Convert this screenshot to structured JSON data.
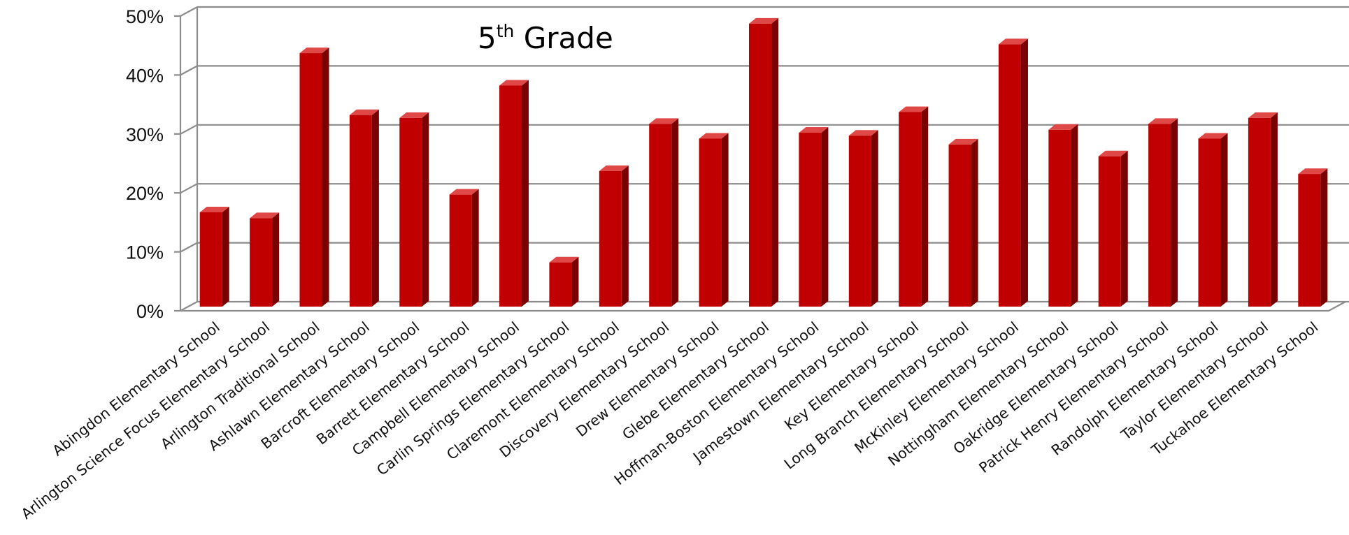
{
  "chart_data": {
    "type": "bar",
    "title_main": "5",
    "title_sup": "th",
    "title_rest": " Grade",
    "ylim": [
      0,
      50
    ],
    "yticks": [
      "0%",
      "10%",
      "20%",
      "30%",
      "40%",
      "50%"
    ],
    "grid": true,
    "bar_color": "#C00000",
    "bar_side_color": "#7A0000",
    "bar_top_color": "#E04848",
    "categories": [
      "Abingdon Elementary School",
      "Arlington Science Focus Elementary School",
      "Arlington Traditional School",
      "Ashlawn Elementary School",
      "Barcroft Elementary School",
      "Barrett Elementary School",
      "Campbell Elementary School",
      "Carlin Springs Elementary School",
      "Claremont Elementary School",
      "Discovery Elementary School",
      "Drew Elementary School",
      "Glebe Elementary School",
      "Hoffman-Boston Elementary School",
      "Jamestown Elementary School",
      "Key Elementary School",
      "Long Branch Elementary School",
      "McKinley Elementary School",
      "Nottingham Elementary School",
      "Oakridge Elementary School",
      "Patrick Henry Elementary School",
      "Randolph Elementary School",
      "Taylor Elementary School",
      "Tuckahoe Elementary School"
    ],
    "values": [
      16,
      15,
      43,
      32.5,
      32,
      19,
      37.5,
      7.5,
      23,
      31,
      28.5,
      48,
      29.5,
      29,
      33,
      27.5,
      44.5,
      30,
      25.5,
      31,
      28.5,
      32,
      22.5
    ]
  }
}
